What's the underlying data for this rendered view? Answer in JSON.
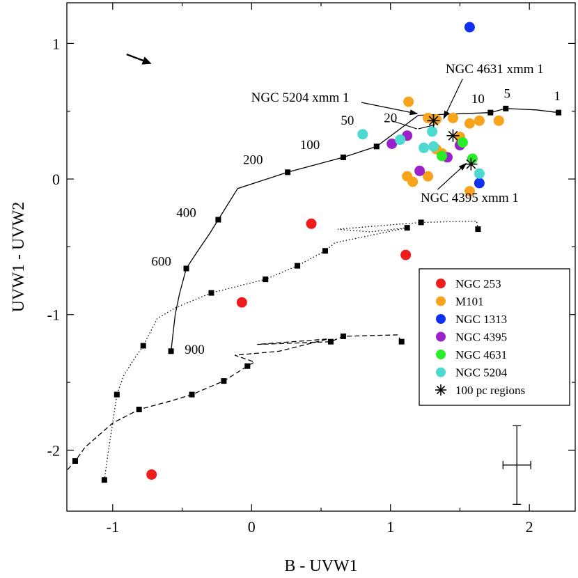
{
  "chart_data": {
    "type": "scatter",
    "xlabel": "B - UVW1",
    "ylabel": "UVW1 - UVW2",
    "xlim": [
      -1.33,
      2.33
    ],
    "ylim": [
      -2.45,
      1.3
    ],
    "xticks": [
      -1,
      0,
      1,
      2
    ],
    "xtick_labels": [
      "-1",
      "0",
      "1",
      "2"
    ],
    "yticks": [
      -2,
      -1,
      0,
      1
    ],
    "ytick_labels": [
      "-2",
      "-1",
      "0",
      "1"
    ],
    "grid": false,
    "legend_position": "lower-right",
    "series": [
      {
        "name": "NGC 253",
        "color": "#ee1c1c",
        "marker": "circle",
        "points": [
          [
            0.43,
            -0.33
          ],
          [
            -0.07,
            -0.91
          ],
          [
            1.11,
            -0.56
          ],
          [
            -0.72,
            -2.18
          ]
        ]
      },
      {
        "name": "M101",
        "color": "#f7a31c",
        "marker": "circle",
        "points": [
          [
            1.13,
            0.57
          ],
          [
            1.27,
            0.45
          ],
          [
            1.33,
            0.44
          ],
          [
            1.45,
            0.45
          ],
          [
            1.5,
            0.31
          ],
          [
            1.57,
            0.41
          ],
          [
            1.64,
            0.43
          ],
          [
            1.78,
            0.43
          ],
          [
            1.33,
            0.22
          ],
          [
            1.37,
            0.19
          ],
          [
            1.12,
            0.02
          ],
          [
            1.16,
            -0.02
          ],
          [
            1.27,
            0.02
          ],
          [
            1.57,
            -0.09
          ]
        ]
      },
      {
        "name": "NGC 1313",
        "color": "#0f2ff2",
        "marker": "circle",
        "points": [
          [
            1.57,
            1.12
          ],
          [
            1.64,
            -0.03
          ]
        ]
      },
      {
        "name": "NGC 4395",
        "color": "#9b22c8",
        "marker": "circle",
        "points": [
          [
            1.12,
            0.32
          ],
          [
            1.01,
            0.26
          ],
          [
            1.21,
            0.06
          ],
          [
            1.41,
            0.16
          ],
          [
            1.5,
            0.25
          ]
        ]
      },
      {
        "name": "NGC 4631",
        "color": "#28ee28",
        "marker": "circle",
        "points": [
          [
            1.52,
            0.27
          ],
          [
            1.37,
            0.17
          ],
          [
            1.59,
            0.15
          ]
        ]
      },
      {
        "name": "NGC 5204",
        "color": "#4cd9d0",
        "marker": "circle",
        "points": [
          [
            0.8,
            0.33
          ],
          [
            1.07,
            0.29
          ],
          [
            1.3,
            0.35
          ],
          [
            1.24,
            0.23
          ],
          [
            1.31,
            0.24
          ],
          [
            1.64,
            0.04
          ]
        ]
      },
      {
        "name": "100 pc regions",
        "color": "#000000",
        "marker": "asterisk",
        "points": [
          [
            1.31,
            0.43
          ],
          [
            1.45,
            0.32
          ],
          [
            1.58,
            0.11
          ]
        ]
      }
    ],
    "tracks": [
      {
        "style": "solid",
        "points": [
          [
            2.21,
            0.49
          ],
          [
            2.05,
            0.51
          ],
          [
            1.83,
            0.52
          ],
          [
            1.72,
            0.49
          ],
          [
            1.2,
            0.47
          ],
          [
            0.9,
            0.24
          ],
          [
            0.66,
            0.16
          ],
          [
            0.26,
            0.05
          ],
          [
            -0.1,
            -0.07
          ],
          [
            -0.24,
            -0.3
          ],
          [
            -0.3,
            -0.4
          ],
          [
            -0.4,
            -0.55
          ],
          [
            -0.47,
            -0.66
          ],
          [
            -0.52,
            -0.85
          ],
          [
            -0.55,
            -1.0
          ],
          [
            -0.58,
            -1.27
          ]
        ],
        "markers": [
          [
            2.21,
            0.49
          ],
          [
            1.83,
            0.52
          ],
          [
            1.72,
            0.49
          ],
          [
            0.9,
            0.24
          ],
          [
            0.66,
            0.16
          ],
          [
            0.26,
            0.05
          ],
          [
            -0.24,
            -0.3
          ],
          [
            -0.47,
            -0.66
          ],
          [
            -0.58,
            -1.27
          ]
        ]
      },
      {
        "style": "dotted",
        "points": [
          [
            1.63,
            -0.37
          ],
          [
            1.62,
            -0.31
          ],
          [
            1.22,
            -0.32
          ],
          [
            0.62,
            -0.37
          ],
          [
            0.85,
            -0.39
          ],
          [
            1.12,
            -0.36
          ],
          [
            0.6,
            -0.47
          ],
          [
            0.53,
            -0.53
          ],
          [
            0.33,
            -0.64
          ],
          [
            0.1,
            -0.74
          ],
          [
            -0.29,
            -0.84
          ],
          [
            -0.55,
            -0.95
          ],
          [
            -0.68,
            -1.03
          ],
          [
            -0.78,
            -1.23
          ],
          [
            -0.86,
            -1.35
          ],
          [
            -0.92,
            -1.45
          ],
          [
            -0.97,
            -1.59
          ],
          [
            -1.0,
            -1.8
          ],
          [
            -1.03,
            -2.0
          ],
          [
            -1.06,
            -2.22
          ]
        ],
        "markers": [
          [
            1.63,
            -0.37
          ],
          [
            1.22,
            -0.32
          ],
          [
            1.12,
            -0.36
          ],
          [
            0.53,
            -0.53
          ],
          [
            0.33,
            -0.64
          ],
          [
            0.1,
            -0.74
          ],
          [
            -0.29,
            -0.84
          ],
          [
            -0.78,
            -1.23
          ],
          [
            -0.97,
            -1.59
          ],
          [
            -1.06,
            -2.22
          ]
        ]
      },
      {
        "style": "dashed",
        "points": [
          [
            1.08,
            -1.2
          ],
          [
            1.05,
            -1.15
          ],
          [
            0.66,
            -1.16
          ],
          [
            0.57,
            -1.2
          ],
          [
            0.04,
            -1.22
          ],
          [
            0.55,
            -1.18
          ],
          [
            0.2,
            -1.27
          ],
          [
            -0.12,
            -1.3
          ],
          [
            0.02,
            -1.35
          ],
          [
            -0.03,
            -1.38
          ],
          [
            -0.2,
            -1.49
          ],
          [
            -0.43,
            -1.59
          ],
          [
            -0.59,
            -1.64
          ],
          [
            -0.81,
            -1.7
          ],
          [
            -1.0,
            -1.8
          ],
          [
            -1.2,
            -1.98
          ],
          [
            -1.27,
            -2.08
          ],
          [
            -1.33,
            -2.15
          ]
        ],
        "markers": [
          [
            1.08,
            -1.2
          ],
          [
            0.66,
            -1.16
          ],
          [
            0.57,
            -1.2
          ],
          [
            -0.03,
            -1.38
          ],
          [
            -0.2,
            -1.49
          ],
          [
            -0.43,
            -1.59
          ],
          [
            -0.81,
            -1.7
          ],
          [
            -1.27,
            -2.08
          ]
        ]
      }
    ],
    "track_labels": [
      {
        "text": "1",
        "at": [
          2.2,
          0.58
        ]
      },
      {
        "text": "5",
        "at": [
          1.84,
          0.6
        ]
      },
      {
        "text": "10",
        "at": [
          1.63,
          0.56
        ]
      },
      {
        "text": "20",
        "at": [
          1.0,
          0.42
        ]
      },
      {
        "text": "50",
        "at": [
          0.69,
          0.4
        ]
      },
      {
        "text": "100",
        "at": [
          0.42,
          0.22
        ]
      },
      {
        "text": "200",
        "at": [
          0.01,
          0.11
        ]
      },
      {
        "text": "400",
        "at": [
          -0.47,
          -0.28
        ]
      },
      {
        "text": "600",
        "at": [
          -0.65,
          -0.64
        ]
      },
      {
        "text": "900",
        "at": [
          -0.41,
          -1.29
        ]
      }
    ],
    "annotations": [
      {
        "text": "NGC 5204 xmm 1",
        "label_at": [
          0.35,
          0.57
        ],
        "arrow_to": [
          1.2,
          0.48
        ]
      },
      {
        "text": "NGC 4631 xmm 1",
        "label_at": [
          1.75,
          0.78
        ],
        "arrow_to": [
          1.38,
          0.44
        ]
      },
      {
        "text": "NGC 4395 xmm 1",
        "label_at": [
          1.57,
          -0.17
        ],
        "arrow_to": [
          1.55,
          0.12
        ]
      }
    ],
    "error_bar": {
      "center": [
        1.91,
        -2.11
      ],
      "x_error": 0.1,
      "y_error": 0.29
    },
    "direction_arrow": {
      "from": [
        -0.9,
        0.92
      ],
      "to": [
        -0.72,
        0.85
      ]
    }
  }
}
